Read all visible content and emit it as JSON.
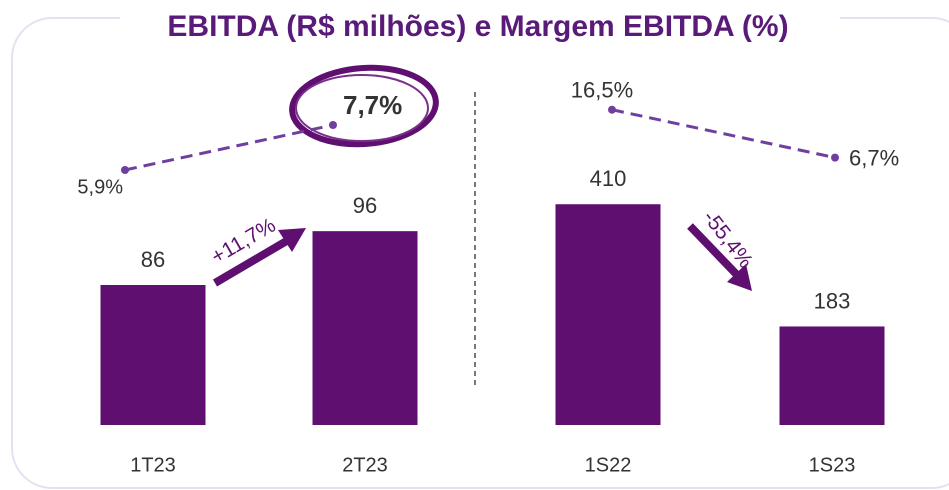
{
  "chart_data": [
    {
      "type": "bar",
      "title": "EBITDA (R$ milhões) e Margem EBITDA (%)",
      "categories": [
        "1T23",
        "2T23"
      ],
      "values": [
        86,
        96
      ],
      "color": "#5e0f6f",
      "ylim": [
        60,
        125
      ],
      "line_values": [
        5.9,
        7.7
      ],
      "line_labels": [
        "5,9%",
        "7,7%"
      ],
      "line_color": "#6f3fa0",
      "y2lim": [
        -4.3,
        9.7
      ],
      "annotation": "+11,7%"
    },
    {
      "type": "bar",
      "categories": [
        "1S22",
        "1S23"
      ],
      "values": [
        410,
        183
      ],
      "color": "#5e0f6f",
      "ylim": [
        0,
        650
      ],
      "line_values": [
        16.5,
        6.7
      ],
      "line_labels": [
        "16,5%",
        "6,7%"
      ],
      "line_color": "#6f3fa0",
      "y2lim": [
        -48,
        23.6
      ],
      "annotation": "-55,4%"
    }
  ]
}
